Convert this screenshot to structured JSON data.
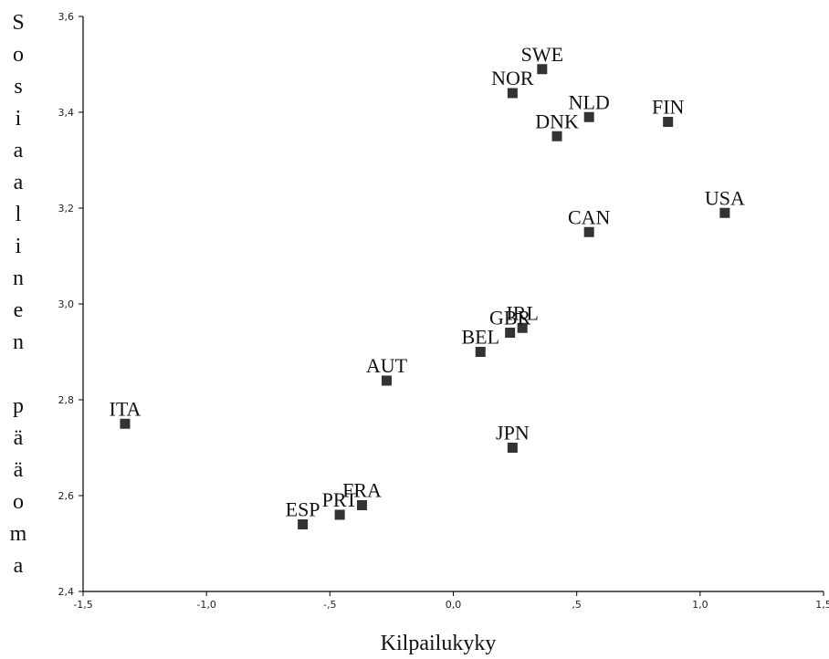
{
  "chart_data": {
    "type": "scatter",
    "title": "",
    "xlabel": "Kilpailukyky",
    "ylabel": "Sosiaalinen pääoma",
    "xlim": [
      -1.5,
      1.5
    ],
    "ylim": [
      2.4,
      3.6
    ],
    "x_ticks": [
      "-1,5",
      "-1,0",
      "-,5",
      "0,0",
      ",5",
      "1,0",
      "1,5"
    ],
    "y_ticks": [
      "2,4",
      "2,6",
      "2,8",
      "3,0",
      "3,2",
      "3,4",
      "3,6"
    ],
    "grid": false,
    "points": [
      {
        "label": "SWE",
        "x": 0.36,
        "y": 3.49
      },
      {
        "label": "NOR",
        "x": 0.24,
        "y": 3.44
      },
      {
        "label": "NLD",
        "x": 0.55,
        "y": 3.39
      },
      {
        "label": "FIN",
        "x": 0.87,
        "y": 3.38
      },
      {
        "label": "DNK",
        "x": 0.42,
        "y": 3.35
      },
      {
        "label": "USA",
        "x": 1.1,
        "y": 3.19
      },
      {
        "label": "CAN",
        "x": 0.55,
        "y": 3.15
      },
      {
        "label": "IRL",
        "x": 0.28,
        "y": 2.95
      },
      {
        "label": "GBR",
        "x": 0.23,
        "y": 2.94
      },
      {
        "label": "BEL",
        "x": 0.11,
        "y": 2.9
      },
      {
        "label": "AUT",
        "x": -0.27,
        "y": 2.84
      },
      {
        "label": "ITA",
        "x": -1.33,
        "y": 2.75
      },
      {
        "label": "JPN",
        "x": 0.24,
        "y": 2.7
      },
      {
        "label": "FRA",
        "x": -0.37,
        "y": 2.58
      },
      {
        "label": "PRT",
        "x": -0.46,
        "y": 2.56
      },
      {
        "label": "ESP",
        "x": -0.61,
        "y": 2.54
      }
    ]
  }
}
